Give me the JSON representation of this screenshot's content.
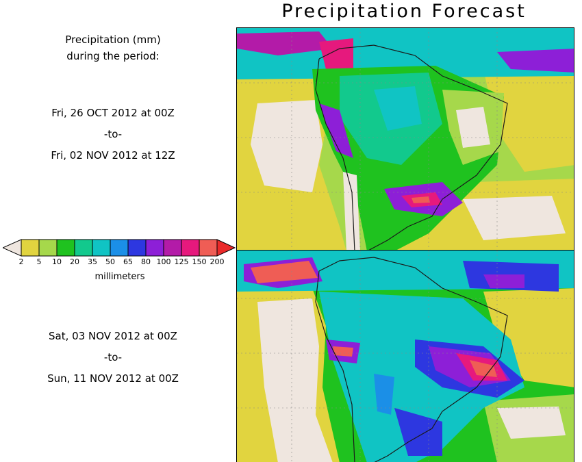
{
  "title": "Precipitation Forecast",
  "header": {
    "line1": "Precipitation (mm)",
    "line2": "during the period:"
  },
  "period1": {
    "from": "Fri, 26 OCT 2012 at 00Z",
    "sep": "-to-",
    "to": "Fri, 02 NOV 2012 at 12Z"
  },
  "period2": {
    "from": "Sat, 03 NOV 2012 at 00Z",
    "sep": "-to-",
    "to": "Sun, 11 NOV 2012 at 00Z"
  },
  "legend": {
    "unit": "millimeters",
    "ticks": [
      "2",
      "5",
      "10",
      "20",
      "35",
      "50",
      "65",
      "80",
      "100",
      "125",
      "150",
      "200"
    ],
    "colors": [
      "#efe6df",
      "#e1d43f",
      "#a6d84b",
      "#1fc21f",
      "#12c98d",
      "#10c4c4",
      "#1b8fe7",
      "#2d37e0",
      "#8d1fd7",
      "#b31ba8",
      "#e6197d",
      "#ef5d55",
      "#ea2a2a"
    ]
  },
  "map_colors": {
    "ocean_dry": "#efe6df",
    "coast": "#1a1a1a",
    "grid": "#888888"
  }
}
